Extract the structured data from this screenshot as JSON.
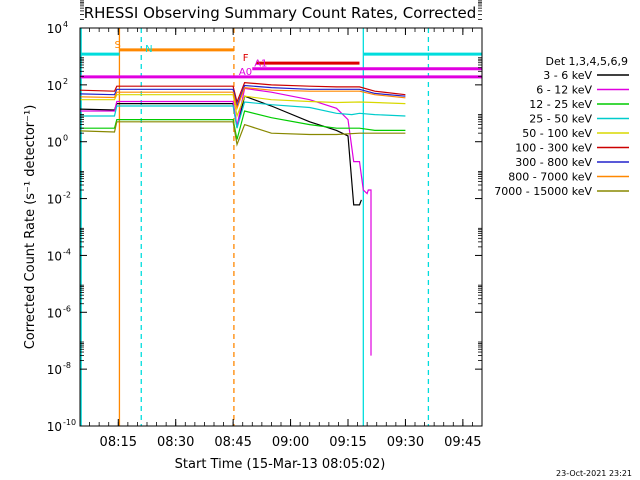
{
  "chart_data": {
    "type": "line",
    "title": "RHESSI Observing Summary Count Rates, Corrected",
    "xlabel": "Start Time (15-Mar-13 08:05:02)",
    "ylabel": "Corrected Count Rate (s⁻¹ detector⁻¹)",
    "y_scale": "log",
    "ylim": [
      1e-10,
      10000.0
    ],
    "xlim_minutes": [
      485,
      590
    ],
    "x_ticks": [
      {
        "t": 495,
        "label": "08:15"
      },
      {
        "t": 510,
        "label": "08:30"
      },
      {
        "t": 525,
        "label": "08:45"
      },
      {
        "t": 540,
        "label": "09:00"
      },
      {
        "t": 555,
        "label": "09:15"
      },
      {
        "t": 570,
        "label": "09:30"
      },
      {
        "t": 585,
        "label": "09:45"
      }
    ],
    "y_ticks": [
      {
        "v": 10000.0,
        "label": "10",
        "exp": "4"
      },
      {
        "v": 100.0,
        "label": "10",
        "exp": "2"
      },
      {
        "v": 1,
        "label": "10",
        "exp": "0"
      },
      {
        "v": 0.01,
        "label": "10",
        "exp": "-2"
      },
      {
        "v": 0.0001,
        "label": "10",
        "exp": "-4"
      },
      {
        "v": 1e-06,
        "label": "10",
        "exp": "-6"
      },
      {
        "v": 1e-08,
        "label": "10",
        "exp": "-8"
      },
      {
        "v": 1e-10,
        "label": "10",
        "exp": "-10"
      }
    ],
    "legend": {
      "title": "Det 1,3,4,5,6,9",
      "placement": "right"
    },
    "series": [
      {
        "name": "3 - 6 keV",
        "color": "#000000",
        "points": [
          [
            485,
            14
          ],
          [
            494,
            13
          ],
          [
            494.6,
            22
          ],
          [
            525,
            22
          ],
          [
            526,
            3.2
          ],
          [
            528,
            40
          ],
          [
            535,
            18
          ],
          [
            545,
            5
          ],
          [
            552,
            2.5
          ],
          [
            555,
            1.6
          ],
          [
            556.5,
            0.006
          ],
          [
            558,
            0.006
          ],
          [
            558.5,
            0.009
          ]
        ]
      },
      {
        "name": "6 - 12 keV",
        "color": "#e000e0",
        "points": [
          [
            485,
            12
          ],
          [
            494,
            12
          ],
          [
            494.6,
            26
          ],
          [
            525,
            26
          ],
          [
            526,
            3.5
          ],
          [
            528,
            75
          ],
          [
            535,
            55
          ],
          [
            545,
            30
          ],
          [
            552,
            15
          ],
          [
            555,
            6
          ],
          [
            556.5,
            0.2
          ],
          [
            558,
            0.2
          ],
          [
            559,
            0.02
          ],
          [
            560,
            0.015
          ],
          [
            560.3,
            0.02
          ],
          [
            561,
            0.02
          ],
          [
            561,
            3e-08
          ]
        ]
      },
      {
        "name": "12 - 25 keV",
        "color": "#00cc00",
        "points": [
          [
            485,
            3
          ],
          [
            494,
            3
          ],
          [
            494.6,
            6
          ],
          [
            525,
            6
          ],
          [
            526,
            1.2
          ],
          [
            528,
            12
          ],
          [
            535,
            7
          ],
          [
            545,
            4
          ],
          [
            552,
            3
          ],
          [
            558,
            3
          ],
          [
            562,
            2.5
          ],
          [
            570,
            2.5
          ]
        ]
      },
      {
        "name": "25 - 50 keV",
        "color": "#00cccc",
        "points": [
          [
            485,
            8
          ],
          [
            494,
            8
          ],
          [
            494.6,
            18
          ],
          [
            525,
            18
          ],
          [
            526,
            3
          ],
          [
            528,
            25
          ],
          [
            535,
            20
          ],
          [
            545,
            16
          ],
          [
            552,
            10
          ],
          [
            556,
            9
          ],
          [
            558,
            10
          ],
          [
            562,
            9
          ],
          [
            570,
            8
          ]
        ]
      },
      {
        "name": "50 - 100 keV",
        "color": "#d8d800",
        "points": [
          [
            485,
            30
          ],
          [
            494,
            30
          ],
          [
            494.6,
            45
          ],
          [
            525,
            45
          ],
          [
            526,
            8
          ],
          [
            528,
            40
          ],
          [
            535,
            30
          ],
          [
            545,
            26
          ],
          [
            552,
            24
          ],
          [
            558,
            25
          ],
          [
            562,
            24
          ],
          [
            570,
            22
          ]
        ]
      },
      {
        "name": "100 - 300 keV",
        "color": "#cc0000",
        "points": [
          [
            485,
            65
          ],
          [
            494,
            60
          ],
          [
            494.6,
            90
          ],
          [
            525,
            90
          ],
          [
            526,
            25
          ],
          [
            528,
            120
          ],
          [
            535,
            100
          ],
          [
            545,
            90
          ],
          [
            552,
            85
          ],
          [
            558,
            85
          ],
          [
            562,
            60
          ],
          [
            570,
            45
          ]
        ]
      },
      {
        "name": "300 - 800 keV",
        "color": "#2222cc",
        "points": [
          [
            485,
            48
          ],
          [
            494,
            45
          ],
          [
            494.6,
            70
          ],
          [
            525,
            70
          ],
          [
            526,
            18
          ],
          [
            528,
            95
          ],
          [
            535,
            80
          ],
          [
            545,
            70
          ],
          [
            552,
            70
          ],
          [
            558,
            70
          ],
          [
            562,
            50
          ],
          [
            570,
            40
          ]
        ]
      },
      {
        "name": "800 - 7000 keV",
        "color": "#ff8800",
        "points": [
          [
            485,
            38
          ],
          [
            494,
            36
          ],
          [
            494.6,
            55
          ],
          [
            525,
            55
          ],
          [
            526,
            15
          ],
          [
            528,
            80
          ],
          [
            535,
            65
          ],
          [
            545,
            60
          ],
          [
            552,
            60
          ],
          [
            558,
            60
          ],
          [
            562,
            45
          ],
          [
            570,
            35
          ]
        ]
      },
      {
        "name": "7000 - 15000 keV",
        "color": "#888800",
        "points": [
          [
            485,
            2.4
          ],
          [
            494,
            2.2
          ],
          [
            494.6,
            5
          ],
          [
            525,
            5
          ],
          [
            526,
            0.8
          ],
          [
            528,
            4
          ],
          [
            535,
            2
          ],
          [
            545,
            1.8
          ],
          [
            552,
            1.8
          ],
          [
            558,
            2
          ],
          [
            562,
            2
          ],
          [
            570,
            2
          ]
        ]
      }
    ],
    "annotation_bars": [
      {
        "label": "S",
        "color": "#ff8800",
        "t_start": 495.3,
        "t_end": 525.2,
        "y": 1700,
        "label_t": 494
      },
      {
        "label": "N",
        "color": "#00dddd",
        "t_start": 485.2,
        "t_end": 495.3,
        "y": 1200,
        "label_t": 502
      },
      {
        "label": "F",
        "color": "#dd0000",
        "t_start": 531,
        "t_end": 558,
        "y": 580,
        "label_t": 527.5
      },
      {
        "label": "A0",
        "color": "#e000e0",
        "t_start": 485.2,
        "t_end": 590,
        "y": 190,
        "label_t": 526.5
      },
      {
        "label": "A1",
        "color": "#e000e0",
        "t_start": 530,
        "t_end": 590,
        "y": 370,
        "label_t": 530.5
      },
      {
        "label": "",
        "color": "#00dddd",
        "t_start": 559,
        "t_end": 590,
        "y": 1200,
        "label_t": 0
      }
    ],
    "vertical_markers": [
      {
        "t": 485.3,
        "color": "#00dddd",
        "style": "solid"
      },
      {
        "t": 495.3,
        "color": "#ff8800",
        "style": "solid"
      },
      {
        "t": 501,
        "color": "#00dddd",
        "style": "dashed"
      },
      {
        "t": 525.2,
        "color": "#ff8800",
        "style": "dashed"
      },
      {
        "t": 559,
        "color": "#00dddd",
        "style": "solid"
      },
      {
        "t": 576,
        "color": "#00dddd",
        "style": "dashed"
      }
    ]
  },
  "timestamp": "23-Oct-2021 23:21"
}
